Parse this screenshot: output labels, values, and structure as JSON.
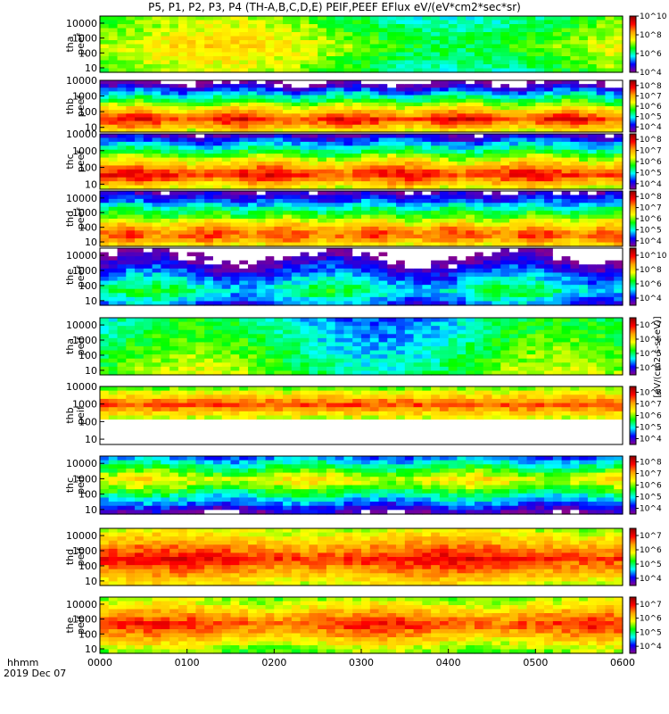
{
  "chart_data": {
    "type": "heatmap",
    "title": "P5, P1, P2, P3, P4 (TH-A,B,C,D,E) PEIF,PEEF EFlux eV/(eV*cm2*sec*sr)",
    "x_ticks": [
      "0000",
      "0100",
      "0200",
      "0300",
      "0400",
      "0500",
      "0600"
    ],
    "xlim": [
      "0000",
      "0600"
    ],
    "x_axis_label": "hhmm",
    "date_label": "2019 Dec 07",
    "y_scale": "log",
    "colorbar_label": "[eV/(cm2-s-sr-eV)]",
    "colormap": [
      "#8B008B",
      "#0000FF",
      "#00FFFF",
      "#00FF00",
      "#FFFF00",
      "#FFA500",
      "#FF0000",
      "#8B0000"
    ],
    "panels": [
      {
        "probe": "tha",
        "product": "peef",
        "ylim": [
          5,
          30000
        ],
        "y_ticks": [
          "10",
          "100",
          "1000",
          "10000"
        ],
        "cbar_ticks": [
          "10^4",
          "10^6",
          "10^8",
          "10^10"
        ],
        "cbar_range": [
          4,
          10
        ]
      },
      {
        "probe": "thb",
        "product": "peef",
        "ylim": [
          5,
          10000
        ],
        "y_ticks": [
          "10",
          "100",
          "1000",
          "10000"
        ],
        "cbar_ticks": [
          "10^4",
          "10^5",
          "10^6",
          "10^7",
          "10^8"
        ],
        "cbar_range": [
          3.5,
          8.5
        ]
      },
      {
        "probe": "thc",
        "product": "peef",
        "ylim": [
          5,
          10000
        ],
        "y_ticks": [
          "10",
          "100",
          "1000",
          "10000"
        ],
        "cbar_ticks": [
          "10^4",
          "10^5",
          "10^6",
          "10^7",
          "10^8"
        ],
        "cbar_range": [
          3.5,
          8.5
        ]
      },
      {
        "probe": "thd",
        "product": "peef",
        "ylim": [
          5,
          30000
        ],
        "y_ticks": [
          "10",
          "100",
          "1000",
          "10000"
        ],
        "cbar_ticks": [
          "10^4",
          "10^5",
          "10^6",
          "10^7",
          "10^8"
        ],
        "cbar_range": [
          3.5,
          8.5
        ]
      },
      {
        "probe": "the",
        "product": "peef",
        "ylim": [
          5,
          30000
        ],
        "y_ticks": [
          "10",
          "100",
          "1000",
          "10000"
        ],
        "cbar_ticks": [
          "10^4",
          "10^6",
          "10^8",
          "10^10"
        ],
        "cbar_range": [
          3,
          11
        ]
      },
      {
        "probe": "tha",
        "product": "peif",
        "ylim": [
          5,
          30000
        ],
        "y_ticks": [
          "10",
          "100",
          "1000",
          "10000"
        ],
        "cbar_ticks": [
          "10^4",
          "10^5",
          "10^6",
          "10^7"
        ],
        "cbar_range": [
          3.5,
          7.5
        ]
      },
      {
        "probe": "thb",
        "product": "peif",
        "ylim": [
          5,
          10000
        ],
        "y_ticks": [
          "10",
          "100",
          "1000",
          "10000"
        ],
        "cbar_ticks": [
          "10^4",
          "10^5",
          "10^6",
          "10^7",
          "10^8"
        ],
        "cbar_range": [
          3.5,
          8.5
        ]
      },
      {
        "probe": "thc",
        "product": "peif",
        "ylim": [
          5,
          30000
        ],
        "y_ticks": [
          "10",
          "100",
          "1000",
          "10000"
        ],
        "cbar_ticks": [
          "10^4",
          "10^5",
          "10^6",
          "10^7",
          "10^8"
        ],
        "cbar_range": [
          3.5,
          8.5
        ]
      },
      {
        "probe": "thd",
        "product": "peif",
        "ylim": [
          5,
          30000
        ],
        "y_ticks": [
          "10",
          "100",
          "1000",
          "10000"
        ],
        "cbar_ticks": [
          "10^4",
          "10^5",
          "10^6",
          "10^7"
        ],
        "cbar_range": [
          3.5,
          7.5
        ]
      },
      {
        "probe": "the",
        "product": "peif",
        "ylim": [
          5,
          30000
        ],
        "y_ticks": [
          "10",
          "100",
          "1000",
          "10000"
        ],
        "cbar_ticks": [
          "10^4",
          "10^5",
          "10^6",
          "10^7"
        ],
        "cbar_range": [
          3.5,
          7.5
        ]
      }
    ]
  }
}
